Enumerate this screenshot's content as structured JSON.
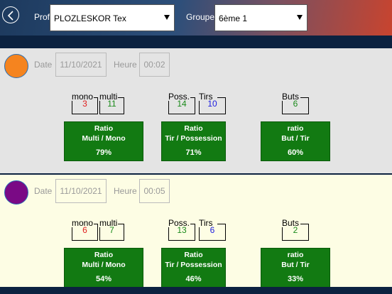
{
  "header": {
    "prof_label": "Prof",
    "prof_value": "PLOZLESKOR Tex",
    "groupe_label": "Groupe",
    "groupe_value": "6ème 1"
  },
  "colors": {
    "ok_green": "#127a12",
    "red": "#e02020",
    "blue": "#1a1ae0",
    "green_text": "#1a8a1a"
  },
  "panels": [
    {
      "avatar_color": "#f5841f",
      "date_label": "Date",
      "date_value": "11/10/2021",
      "heure_label": "Heure",
      "heure_value": "00:02",
      "mono_label": "mono",
      "mono_value": "3",
      "multi_label": "multi",
      "multi_value": "11",
      "poss_label": "Poss.",
      "poss_value": "14",
      "tirs_label": "Tirs",
      "tirs_value": "10",
      "buts_label": "Buts",
      "buts_value": "6",
      "ratio1_line1": "Ratio",
      "ratio1_line2": "Multi / Mono",
      "ratio1_value": "79%",
      "ratio2_line1": "Ratio",
      "ratio2_line2": "Tir / Possession",
      "ratio2_value": "71%",
      "ratio3_line1": "ratio",
      "ratio3_line2": "But / Tir",
      "ratio3_value": "60%"
    },
    {
      "avatar_color": "#7a0a85",
      "date_label": "Date",
      "date_value": "11/10/2021",
      "heure_label": "Heure",
      "heure_value": "00:05",
      "mono_label": "mono",
      "mono_value": "6",
      "multi_label": "multi",
      "multi_value": "7",
      "poss_label": "Poss.",
      "poss_value": "13",
      "tirs_label": "Tirs",
      "tirs_value": "6",
      "buts_label": "Buts",
      "buts_value": "2",
      "ratio1_line1": "Ratio",
      "ratio1_line2": "Multi / Mono",
      "ratio1_value": "54%",
      "ratio2_line1": "Ratio",
      "ratio2_line2": "Tir / Possession",
      "ratio2_value": "46%",
      "ratio3_line1": "ratio",
      "ratio3_line2": "But / Tir",
      "ratio3_value": "33%"
    }
  ]
}
